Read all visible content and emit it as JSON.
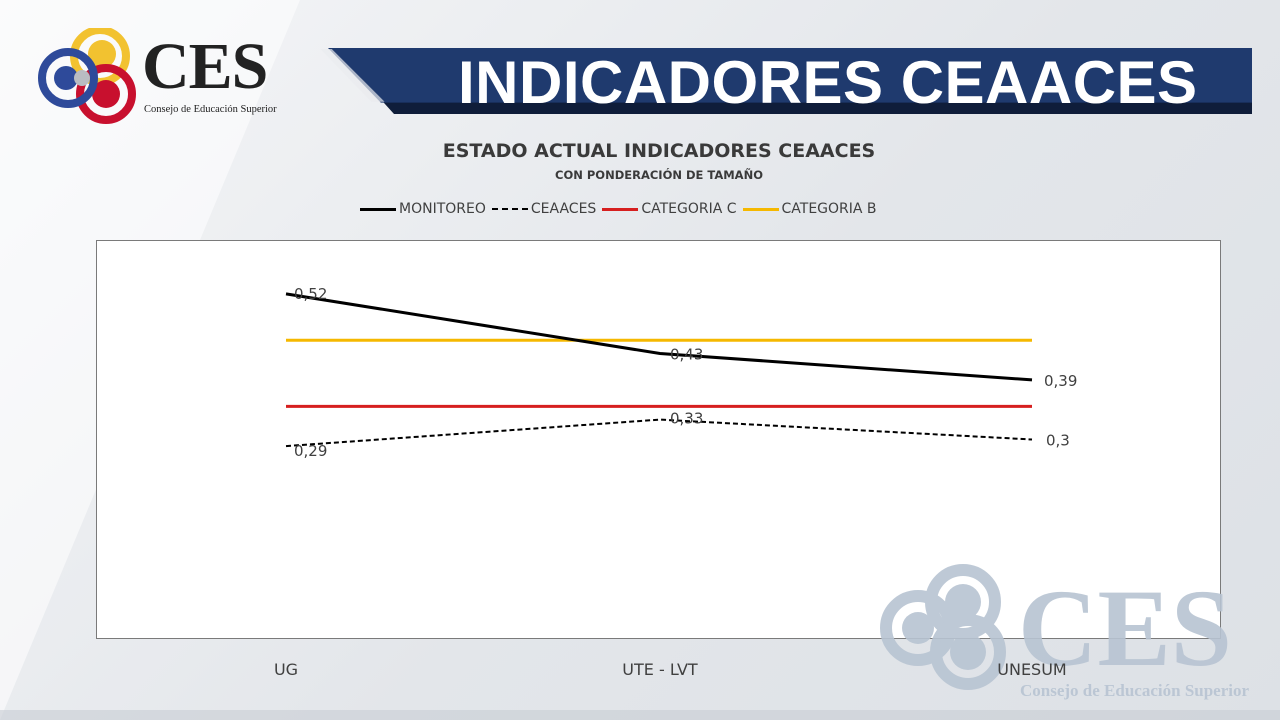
{
  "brand": {
    "logo_text": "CES",
    "logo_subtitle": "Consejo de Educación Superior",
    "logo_colors": {
      "yellow": "#f2c230",
      "red": "#c8102e",
      "blue": "#2e4a9a",
      "gray": "#b9bcc2"
    }
  },
  "banner": {
    "title": "INDICADORES CEAACES",
    "color": "#1f3a6e",
    "shadow": "#0f1d3a"
  },
  "chart_data": {
    "type": "line",
    "title": "ESTADO ACTUAL INDICADORES CEAACES",
    "subtitle": "CON PONDERACIÓN DE TAMAÑO",
    "categories": [
      "UG",
      "UTE - LVT",
      "UNESUM"
    ],
    "ylim": [
      0,
      0.6
    ],
    "legend_position": "top",
    "grid": false,
    "series": [
      {
        "name": "MONITOREO",
        "values": [
          0.52,
          0.43,
          0.39
        ],
        "labels": [
          "0,52",
          "0,43",
          "0,39"
        ],
        "color": "#000000",
        "style": "solid",
        "width": 3
      },
      {
        "name": "CEAACES",
        "values": [
          0.29,
          0.33,
          0.3
        ],
        "labels": [
          "0,29",
          "0,33",
          "0,3"
        ],
        "color": "#000000",
        "style": "dashed",
        "width": 2
      },
      {
        "name": "CATEGORIA C",
        "values": [
          0.35,
          0.35,
          0.35
        ],
        "color": "#d61f1f",
        "style": "solid",
        "width": 3
      },
      {
        "name": "CATEGORIA B",
        "values": [
          0.45,
          0.45,
          0.45
        ],
        "color": "#f5b800",
        "style": "solid",
        "width": 3
      }
    ]
  },
  "watermark": {
    "logo_text": "CES",
    "logo_subtitle": "Consejo de Educación Superior"
  }
}
